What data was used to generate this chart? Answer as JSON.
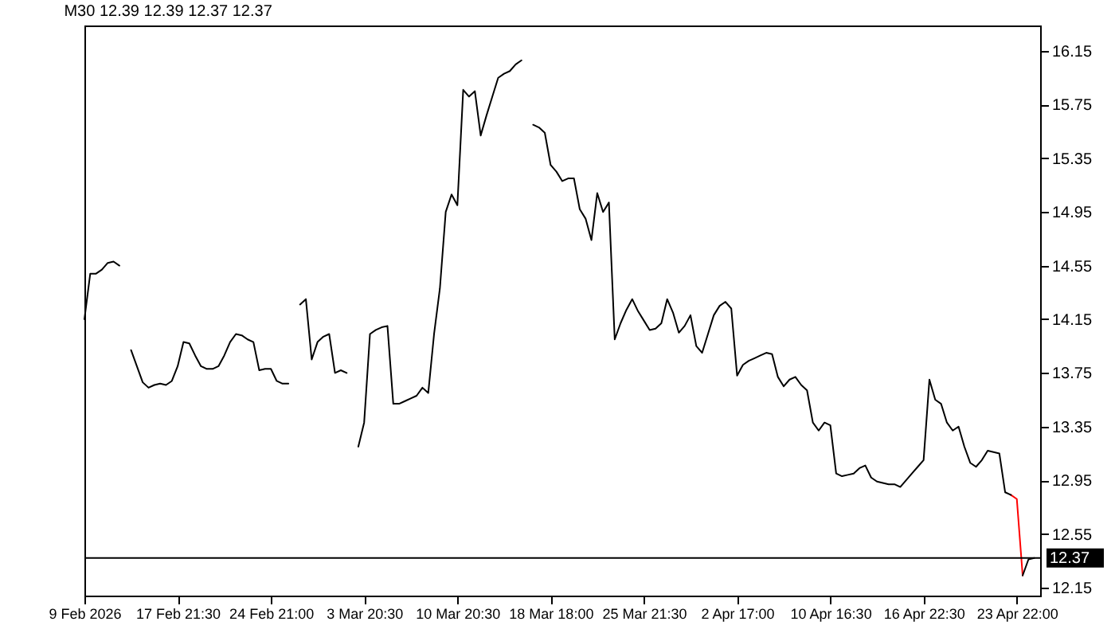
{
  "chart_data": {
    "type": "line",
    "title": "M30  12.39 12.39 12.37 12.37",
    "categories": [
      "9 Feb 2026",
      null,
      null,
      null,
      null,
      null,
      null,
      null,
      null,
      null,
      null,
      null,
      null,
      null,
      null,
      null,
      "17 Feb 21:30",
      null,
      null,
      null,
      null,
      null,
      null,
      null,
      null,
      null,
      null,
      null,
      null,
      null,
      null,
      null,
      "24 Feb 21:00",
      null,
      null,
      null,
      null,
      null,
      null,
      null,
      null,
      null,
      null,
      null,
      null,
      null,
      null,
      null,
      "3 Mar 20:30",
      null,
      null,
      null,
      null,
      null,
      null,
      null,
      null,
      null,
      null,
      null,
      null,
      null,
      null,
      null,
      "10 Mar 20:30",
      null,
      null,
      null,
      null,
      null,
      null,
      null,
      null,
      null,
      null,
      null,
      null,
      null,
      null,
      null,
      "18 Mar 18:00",
      null,
      null,
      null,
      null,
      null,
      null,
      null,
      null,
      null,
      null,
      null,
      null,
      null,
      null,
      null,
      "25 Mar 21:30",
      null,
      null,
      null,
      null,
      null,
      null,
      null,
      null,
      null,
      null,
      null,
      null,
      null,
      null,
      null,
      "2 Apr 17:00",
      null,
      null,
      null,
      null,
      null,
      null,
      null,
      null,
      null,
      null,
      null,
      null,
      null,
      null,
      null,
      "10 Apr 16:30",
      null,
      null,
      null,
      null,
      null,
      null,
      null,
      null,
      null,
      null,
      null,
      null,
      null,
      null,
      null,
      "16 Apr 22:30",
      null,
      null,
      null,
      null,
      null,
      null,
      null,
      null,
      null,
      null,
      null,
      null,
      null,
      null,
      null,
      "23 Apr 22:00",
      null,
      null,
      null,
      null
    ],
    "series": [
      {
        "color": "#ff0000",
        "values": [
          null,
          null,
          null,
          null,
          null,
          null,
          null,
          null,
          null,
          null,
          null,
          null,
          null,
          null,
          null,
          null,
          null,
          null,
          null,
          null,
          null,
          null,
          null,
          null,
          null,
          null,
          null,
          null,
          null,
          null,
          null,
          null,
          null,
          null,
          null,
          null,
          null,
          null,
          null,
          null,
          null,
          null,
          null,
          null,
          null,
          null,
          null,
          null,
          null,
          null,
          null,
          null,
          null,
          null,
          null,
          null,
          null,
          null,
          null,
          null,
          null,
          null,
          null,
          null,
          null,
          null,
          null,
          null,
          null,
          null,
          null,
          null,
          null,
          null,
          null,
          null,
          null,
          null,
          null,
          null,
          null,
          null,
          null,
          null,
          null,
          null,
          null,
          null,
          null,
          null,
          null,
          null,
          null,
          null,
          null,
          null,
          null,
          null,
          null,
          null,
          null,
          null,
          null,
          null,
          null,
          null,
          null,
          null,
          null,
          null,
          null,
          null,
          null,
          null,
          null,
          null,
          null,
          null,
          null,
          null,
          null,
          null,
          null,
          null,
          null,
          null,
          null,
          null,
          null,
          null,
          null,
          null,
          null,
          null,
          null,
          null,
          null,
          null,
          null,
          null,
          null,
          null,
          null,
          null,
          null,
          null,
          null,
          null,
          null,
          null,
          null,
          null,
          null,
          null,
          null,
          null,
          null,
          null,
          null,
          12.84,
          12.81,
          12.24,
          null,
          null,
          null
        ]
      },
      {
        "color": "#000000",
        "values": [
          14.15,
          14.49,
          14.49,
          14.52,
          14.57,
          14.58,
          14.55,
          null,
          13.92,
          13.8,
          13.68,
          13.64,
          13.66,
          13.67,
          13.66,
          13.69,
          13.8,
          13.98,
          13.97,
          13.88,
          13.8,
          13.78,
          13.78,
          13.8,
          13.88,
          13.98,
          14.04,
          14.03,
          14.0,
          13.98,
          13.77,
          13.78,
          13.78,
          13.69,
          13.67,
          13.67,
          null,
          14.26,
          14.3,
          13.85,
          13.98,
          14.02,
          14.04,
          13.75,
          13.77,
          13.75,
          null,
          13.2,
          13.38,
          14.04,
          14.07,
          14.09,
          14.1,
          13.52,
          13.52,
          13.54,
          13.56,
          13.58,
          13.64,
          13.6,
          14.04,
          14.38,
          14.95,
          15.08,
          15.0,
          15.86,
          15.81,
          15.85,
          15.52,
          15.67,
          15.81,
          15.95,
          15.98,
          16.0,
          16.05,
          16.08,
          null,
          15.6,
          15.58,
          15.54,
          15.3,
          15.25,
          15.18,
          15.2,
          15.2,
          14.97,
          14.9,
          14.74,
          15.09,
          14.95,
          15.02,
          14.0,
          14.12,
          14.22,
          14.3,
          14.21,
          14.14,
          14.07,
          14.08,
          14.12,
          14.3,
          14.2,
          14.05,
          14.1,
          14.18,
          13.95,
          13.9,
          14.04,
          14.18,
          14.25,
          14.28,
          14.23,
          13.73,
          13.81,
          13.84,
          13.86,
          13.88,
          13.9,
          13.89,
          13.72,
          13.65,
          13.7,
          13.72,
          13.66,
          13.62,
          13.38,
          13.32,
          13.38,
          13.36,
          13.0,
          12.98,
          12.99,
          13.0,
          13.04,
          13.06,
          12.97,
          12.94,
          12.93,
          12.92,
          12.92,
          12.9,
          12.95,
          13.0,
          13.05,
          13.1,
          13.7,
          13.55,
          13.52,
          13.38,
          13.32,
          13.35,
          13.2,
          13.08,
          13.05,
          13.1,
          13.17,
          13.16,
          13.15,
          12.86,
          12.84,
          null,
          12.24,
          12.36,
          12.37,
          null
        ]
      }
    ],
    "ylim": [
      12.09,
      16.34
    ],
    "yticks": [
      12.15,
      12.55,
      12.95,
      13.35,
      13.75,
      14.15,
      14.55,
      14.95,
      15.35,
      15.75,
      16.15
    ],
    "ref_lines": [
      {
        "axis": "y",
        "value": 12.37,
        "label": "12.37",
        "color": "#000000"
      }
    ],
    "grid": false,
    "line_style": "solid"
  }
}
